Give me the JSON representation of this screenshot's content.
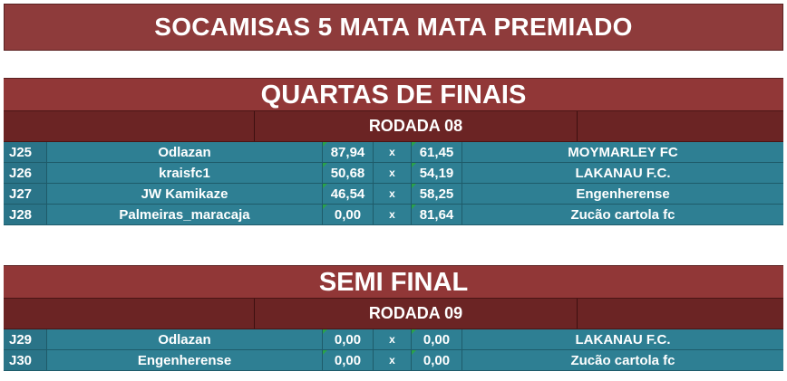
{
  "title": "SOCAMISAS 5 MATA MATA PREMIADO",
  "quarter": {
    "heading": "QUARTAS DE FINAIS",
    "round": "RODADA 08",
    "matches": [
      {
        "id": "J25",
        "home": "Odlazan",
        "home_score": "87,94",
        "sep": "x",
        "away_score": "61,45",
        "away": "MOYMARLEY FC"
      },
      {
        "id": "J26",
        "home": "kraisfc1",
        "home_score": "50,68",
        "sep": "x",
        "away_score": "54,19",
        "away": "LAKANAU F.C."
      },
      {
        "id": "J27",
        "home": "JW Kamikaze",
        "home_score": "46,54",
        "sep": "x",
        "away_score": "58,25",
        "away": "Engenherense"
      },
      {
        "id": "J28",
        "home": "Palmeiras_maracaja",
        "home_score": "0,00",
        "sep": "x",
        "away_score": "81,64",
        "away": "Zucão cartola fc"
      }
    ]
  },
  "semi": {
    "heading": "SEMI FINAL",
    "round": "RODADA 09",
    "matches": [
      {
        "id": "J29",
        "home": "Odlazan",
        "home_score": "0,00",
        "sep": "x",
        "away_score": "0,00",
        "away": "LAKANAU F.C."
      },
      {
        "id": "J30",
        "home": "Engenherense",
        "home_score": "0,00",
        "sep": "x",
        "away_score": "0,00",
        "away": "Zucão cartola fc"
      }
    ]
  },
  "colors": {
    "header_red": "#913737",
    "round_dark_red": "#6b2424",
    "match_teal": "#2e7f93"
  }
}
